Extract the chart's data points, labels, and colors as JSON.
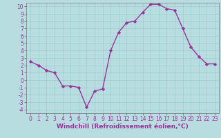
{
  "x": [
    0,
    1,
    2,
    3,
    4,
    5,
    6,
    7,
    8,
    9,
    10,
    11,
    12,
    13,
    14,
    15,
    16,
    17,
    18,
    19,
    20,
    21,
    22,
    23
  ],
  "y": [
    2.5,
    2.0,
    1.3,
    1.0,
    -0.8,
    -0.8,
    -1.0,
    -3.7,
    -1.5,
    -1.2,
    4.0,
    6.5,
    7.8,
    8.0,
    9.2,
    10.3,
    10.3,
    9.7,
    9.5,
    7.0,
    4.5,
    3.2,
    2.2,
    2.2
  ],
  "color": "#993399",
  "bg_color": "#b8dde0",
  "grid_color": "#99cccc",
  "xlabel": "Windchill (Refroidissement éolien,°C)",
  "xlim": [
    -0.5,
    23.5
  ],
  "ylim": [
    -4.5,
    10.5
  ],
  "xticks": [
    0,
    1,
    2,
    3,
    4,
    5,
    6,
    7,
    8,
    9,
    10,
    11,
    12,
    13,
    14,
    15,
    16,
    17,
    18,
    19,
    20,
    21,
    22,
    23
  ],
  "yticks": [
    10,
    9,
    8,
    7,
    6,
    5,
    4,
    3,
    2,
    1,
    0,
    -1,
    -2,
    -3,
    -4
  ],
  "ytick_labels": [
    "10",
    "9",
    "8",
    "7",
    "6",
    "5",
    "4",
    "3",
    "2",
    "1",
    "0",
    "-1",
    "-2",
    "-3",
    "-4"
  ],
  "marker": "D",
  "markersize": 2.2,
  "linewidth": 1.0,
  "xlabel_fontsize": 6.5,
  "tick_fontsize": 5.5
}
